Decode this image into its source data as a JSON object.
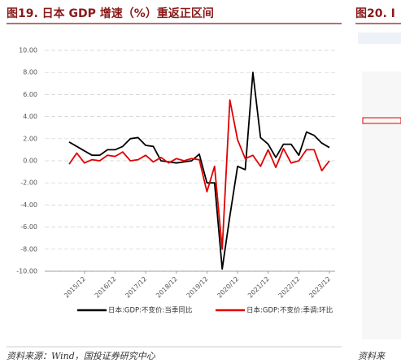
{
  "chart_data": {
    "type": "line",
    "title": "图19. 日本 GDP 增速（%）重返正区间",
    "categories": [
      null,
      null,
      "2015/12",
      null,
      null,
      null,
      "2016/12",
      null,
      null,
      null,
      "2017/12",
      null,
      null,
      null,
      "2018/12",
      null,
      null,
      null,
      "2019/12",
      null,
      null,
      null,
      "2020/12",
      null,
      null,
      null,
      "2021/12",
      null,
      null,
      null,
      "2022/12",
      null,
      null,
      null,
      "2023/12"
    ],
    "series": [
      {
        "name": "日本:GDP:不变价:当季同比",
        "color": "#000000",
        "values": [
          1.7,
          1.3,
          0.9,
          0.5,
          0.5,
          1.0,
          1.0,
          1.3,
          2.0,
          2.1,
          1.4,
          1.3,
          0.0,
          -0.1,
          -0.2,
          -0.1,
          0.0,
          0.6,
          -2.0,
          -2.0,
          -9.8,
          -5.0,
          -0.5,
          -0.8,
          8.0,
          2.1,
          1.5,
          0.3,
          1.5,
          1.5,
          0.5,
          2.6,
          2.3,
          1.6,
          1.2
        ]
      },
      {
        "name": "日本:GDP:不变价:季调:环比",
        "color": "#e00000",
        "values": [
          -0.3,
          0.7,
          -0.2,
          0.1,
          0.0,
          0.5,
          0.4,
          0.8,
          0.0,
          0.1,
          0.5,
          -0.1,
          0.3,
          -0.2,
          0.2,
          0.0,
          0.2,
          0.1,
          -2.8,
          -0.5,
          -8.0,
          5.5,
          1.9,
          0.2,
          0.5,
          -0.5,
          1.0,
          -0.6,
          1.1,
          -0.2,
          0.0,
          1.0,
          1.0,
          -0.9,
          0.0
        ]
      }
    ],
    "ylim": [
      -10,
      10
    ],
    "yticks": [
      {
        "value": 10,
        "label": "10.00"
      },
      {
        "value": 8,
        "label": "8.00"
      },
      {
        "value": 6,
        "label": "6.00"
      },
      {
        "value": 4,
        "label": "4.00"
      },
      {
        "value": 2,
        "label": "2.00"
      },
      {
        "value": 0,
        "label": "0.00"
      },
      {
        "value": -2,
        "label": "-2.00"
      },
      {
        "value": -4,
        "label": "-4.00"
      },
      {
        "value": -6,
        "label": "-6.00"
      },
      {
        "value": -8,
        "label": "-8.00"
      },
      {
        "value": -10,
        "label": "-10.00"
      }
    ],
    "grid": true,
    "legend": "bottom"
  },
  "source": "资料来源：Wind，国投证券研究中心",
  "right_panel": {
    "title": "图20. I",
    "source": "资料来"
  }
}
